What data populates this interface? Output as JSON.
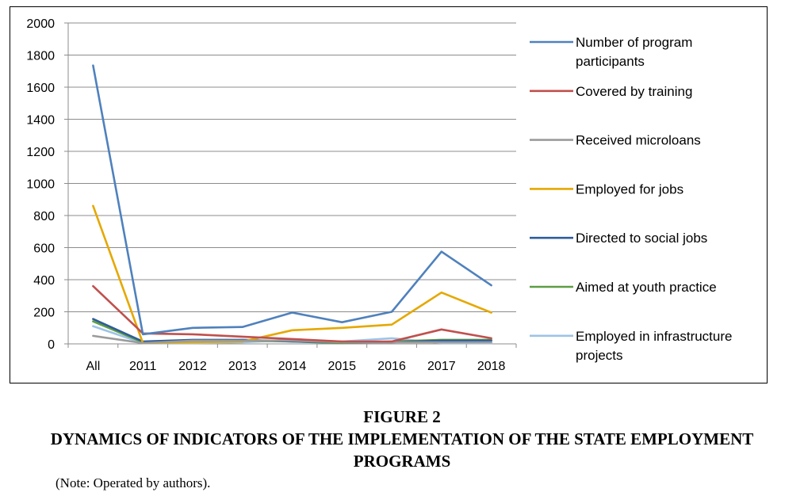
{
  "chart_data": {
    "type": "line",
    "categories": [
      "All",
      "2011",
      "2012",
      "2013",
      "2014",
      "2015",
      "2016",
      "2017",
      "2018"
    ],
    "ylim": [
      0,
      2000
    ],
    "yticks": [
      0,
      200,
      400,
      600,
      800,
      1000,
      1200,
      1400,
      1600,
      1800,
      2000
    ],
    "grid": true,
    "legend_position": "right",
    "series": [
      {
        "name": "Number of program participants",
        "color": "#4f81bd",
        "values": [
          1735,
          60,
          100,
          105,
          195,
          135,
          200,
          575,
          365
        ]
      },
      {
        "name": "Covered by training",
        "color": "#c0504d",
        "values": [
          360,
          65,
          60,
          45,
          30,
          15,
          15,
          90,
          35
        ]
      },
      {
        "name": "Received microloans",
        "color": "#9b9b9b",
        "values": [
          50,
          5,
          20,
          20,
          20,
          10,
          10,
          10,
          10
        ]
      },
      {
        "name": "Employed for jobs",
        "color": "#e5a800",
        "values": [
          860,
          5,
          10,
          15,
          85,
          100,
          120,
          320,
          195
        ]
      },
      {
        "name": "Directed to social jobs",
        "color": "#2e5c99",
        "values": [
          155,
          15,
          25,
          25,
          15,
          10,
          10,
          20,
          20
        ]
      },
      {
        "name": "Aimed at youth practice",
        "color": "#5e9e43",
        "values": [
          140,
          10,
          20,
          20,
          15,
          5,
          15,
          25,
          25
        ]
      },
      {
        "name": "Employed in infrastructure projects",
        "color": "#9dc3e6",
        "values": [
          110,
          5,
          5,
          10,
          25,
          15,
          35,
          5,
          5
        ]
      }
    ]
  },
  "caption": {
    "number": "FIGURE 2",
    "title": "DYNAMICS OF INDICATORS OF THE IMPLEMENTATION OF THE STATE EMPLOYMENT PROGRAMS",
    "note": "(Note: Operated by authors)."
  }
}
